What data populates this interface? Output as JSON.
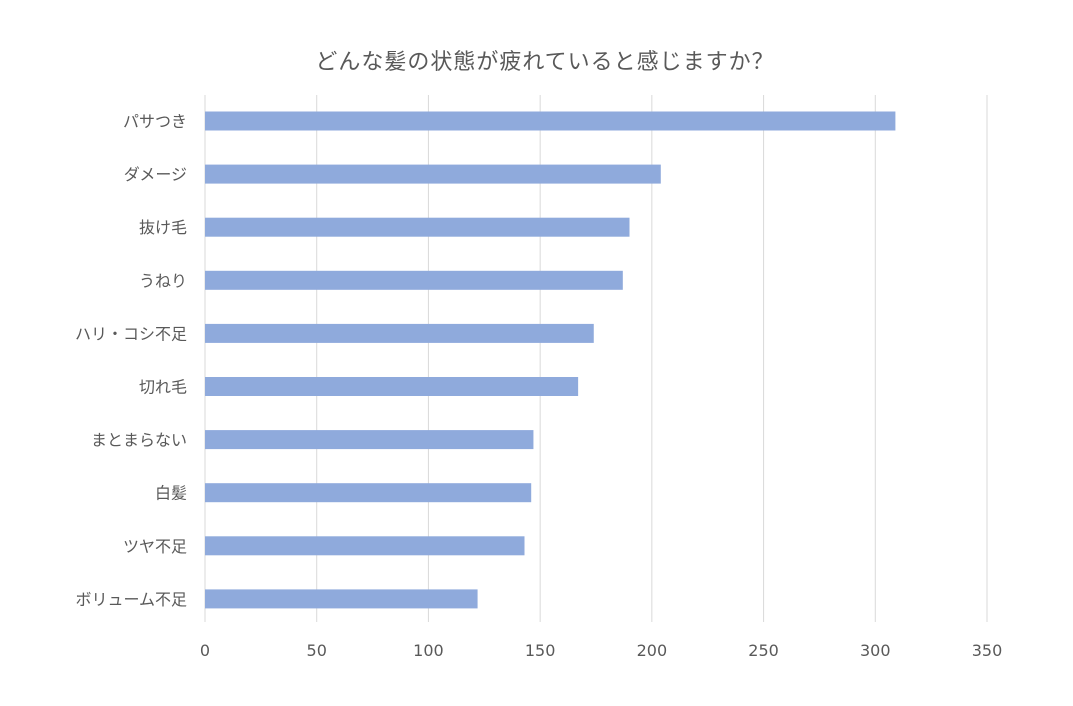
{
  "chart_data": {
    "type": "bar",
    "orientation": "horizontal",
    "title": "どんな髪の状態が疲れていると感じますか？",
    "xlabel": "",
    "ylabel": "",
    "categories": [
      "パサつき",
      "ダメージ",
      "抜け毛",
      "うねり",
      "ハリ・コシ不足",
      "切れ毛",
      "まとまらない",
      "白髪",
      "ツヤ不足",
      "ボリューム不足"
    ],
    "values": [
      309,
      204,
      190,
      187,
      174,
      167,
      147,
      146,
      143,
      122
    ],
    "xlim": [
      0,
      350
    ],
    "xticks": [
      0,
      50,
      100,
      150,
      200,
      250,
      300,
      350
    ],
    "grid": "vertical",
    "legend": "none",
    "colors": {
      "bar": "#8faadc",
      "grid": "#d9d9d9",
      "axis": "#d9d9d9",
      "text": "#595959"
    }
  }
}
